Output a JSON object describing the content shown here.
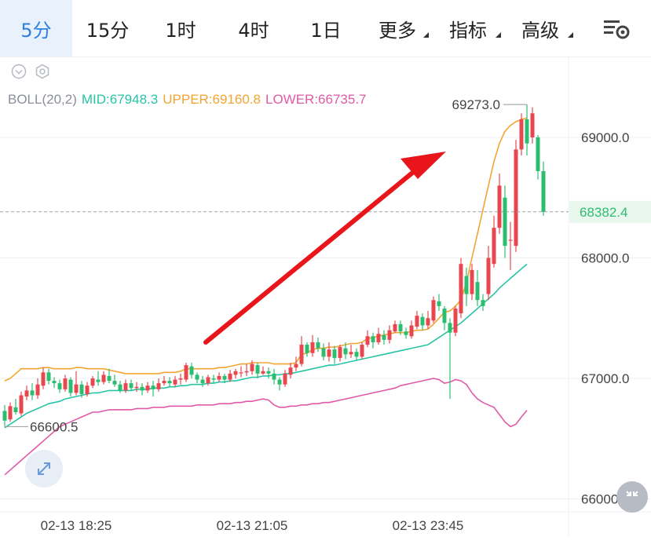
{
  "tabs": [
    {
      "label": "5分",
      "active": true,
      "dropdown": false
    },
    {
      "label": "15分",
      "active": false,
      "dropdown": false
    },
    {
      "label": "1时",
      "active": false,
      "dropdown": false
    },
    {
      "label": "4时",
      "active": false,
      "dropdown": false
    },
    {
      "label": "1日",
      "active": false,
      "dropdown": false
    },
    {
      "label": "更多",
      "active": false,
      "dropdown": true
    },
    {
      "label": "指标",
      "active": false,
      "dropdown": true
    },
    {
      "label": "高级",
      "active": false,
      "dropdown": true
    }
  ],
  "indicator": {
    "name": "BOLL(20,2)",
    "mid": "MID:67948.3",
    "upper": "UPPER:69160.8",
    "lower": "LOWER:66735.7"
  },
  "colors": {
    "up": "#e8474f",
    "down": "#2dbd6f",
    "mid": "#27c4a6",
    "upper": "#f2a531",
    "lower": "#e05aa8",
    "accent": "#2f7fe0",
    "arrow": "#e8161b"
  },
  "chart_data": {
    "type": "candlestick",
    "price_axis": {
      "ticks": [
        "69000.0",
        "68000.0",
        "67000.0",
        "66000.0"
      ],
      "tick_values": [
        69000,
        68000,
        67000,
        66000
      ],
      "current_price": "68382.4",
      "range": [
        65900,
        69900
      ]
    },
    "time_axis": {
      "labels": [
        "02-13 18:25",
        "02-13 21:05",
        "02-13 23:45"
      ],
      "label_index": [
        13,
        45,
        77
      ]
    },
    "annotations": {
      "high_label": "69273.0",
      "low_label": "66600.5"
    },
    "candles": [
      [
        66730,
        66650,
        66780,
        66600
      ],
      [
        66660,
        66770,
        66800,
        66640
      ],
      [
        66760,
        66720,
        66830,
        66700
      ],
      [
        66710,
        66860,
        66890,
        66690
      ],
      [
        66850,
        66900,
        66940,
        66820
      ],
      [
        66900,
        66860,
        66960,
        66820
      ],
      [
        66860,
        66950,
        67000,
        66830
      ],
      [
        66940,
        67050,
        67090,
        66910
      ],
      [
        67050,
        66980,
        67080,
        66950
      ],
      [
        66980,
        66960,
        67010,
        66920
      ],
      [
        66960,
        66910,
        66990,
        66880
      ],
      [
        66910,
        67000,
        67030,
        66890
      ],
      [
        66990,
        66880,
        67010,
        66850
      ],
      [
        66880,
        66950,
        67060,
        66860
      ],
      [
        66950,
        66870,
        66980,
        66840
      ],
      [
        66870,
        66940,
        66970,
        66850
      ],
      [
        66940,
        67000,
        67020,
        66920
      ],
      [
        66990,
        66970,
        67060,
        66940
      ],
      [
        66970,
        67030,
        67060,
        66950
      ],
      [
        67020,
        66980,
        67080,
        66960
      ],
      [
        66980,
        66950,
        67030,
        66930
      ],
      [
        66950,
        66900,
        66980,
        66880
      ],
      [
        66900,
        66960,
        66990,
        66880
      ],
      [
        66960,
        66920,
        66990,
        66900
      ],
      [
        66920,
        66930,
        66970,
        66890
      ],
      [
        66930,
        66900,
        66960,
        66860
      ],
      [
        66900,
        66940,
        66970,
        66880
      ],
      [
        66940,
        66910,
        66980,
        66850
      ],
      [
        66910,
        66960,
        67000,
        66890
      ],
      [
        66960,
        66980,
        67020,
        66940
      ],
      [
        66980,
        66960,
        67010,
        66930
      ],
      [
        66950,
        66990,
        67020,
        66930
      ],
      [
        66990,
        67000,
        67040,
        66950
      ],
      [
        66990,
        67110,
        67130,
        66970
      ],
      [
        67100,
        67030,
        67130,
        67000
      ],
      [
        67030,
        66990,
        67050,
        66960
      ],
      [
        66990,
        66960,
        67020,
        66930
      ],
      [
        66960,
        67010,
        67030,
        66940
      ],
      [
        67000,
        66990,
        67030,
        66960
      ],
      [
        66990,
        67020,
        67050,
        66970
      ],
      [
        67020,
        66990,
        67040,
        66960
      ],
      [
        66990,
        67040,
        67070,
        66970
      ],
      [
        67030,
        67060,
        67080,
        67000
      ],
      [
        67050,
        67050,
        67100,
        67010
      ],
      [
        67050,
        67060,
        67120,
        67020
      ],
      [
        67060,
        67120,
        67150,
        67030
      ],
      [
        67110,
        67040,
        67130,
        67000
      ],
      [
        67040,
        67060,
        67100,
        67030
      ],
      [
        67060,
        67040,
        67090,
        67000
      ],
      [
        67040,
        66990,
        67080,
        66950
      ],
      [
        66990,
        66950,
        67010,
        66900
      ],
      [
        66950,
        67040,
        67070,
        66930
      ],
      [
        67030,
        67090,
        67130,
        67000
      ],
      [
        67090,
        67120,
        67180,
        67060
      ],
      [
        67120,
        67280,
        67350,
        67100
      ],
      [
        67280,
        67210,
        67300,
        67180
      ],
      [
        67210,
        67300,
        67360,
        67180
      ],
      [
        67300,
        67250,
        67340,
        67220
      ],
      [
        67250,
        67180,
        67290,
        67150
      ],
      [
        67180,
        67240,
        67300,
        67140
      ],
      [
        67240,
        67170,
        67270,
        67120
      ],
      [
        67170,
        67260,
        67280,
        67140
      ],
      [
        67250,
        67200,
        67300,
        67160
      ],
      [
        67200,
        67220,
        67280,
        67170
      ],
      [
        67220,
        67180,
        67250,
        67150
      ],
      [
        67180,
        67280,
        67300,
        67160
      ],
      [
        67280,
        67350,
        67400,
        67260
      ],
      [
        67350,
        67300,
        67380,
        67250
      ],
      [
        67300,
        67370,
        67420,
        67280
      ],
      [
        67360,
        67320,
        67400,
        67280
      ],
      [
        67320,
        67400,
        67440,
        67290
      ],
      [
        67390,
        67450,
        67480,
        67380
      ],
      [
        67450,
        67390,
        67480,
        67360
      ],
      [
        67390,
        67360,
        67420,
        67330
      ],
      [
        67350,
        67440,
        67480,
        67330
      ],
      [
        67430,
        67520,
        67560,
        67410
      ],
      [
        67510,
        67440,
        67540,
        67400
      ],
      [
        67440,
        67500,
        67560,
        67410
      ],
      [
        67480,
        67650,
        67680,
        67460
      ],
      [
        67640,
        67600,
        67700,
        67560
      ],
      [
        67580,
        67460,
        67600,
        67400
      ],
      [
        67460,
        67380,
        67500,
        66830
      ],
      [
        67380,
        67580,
        67600,
        67350
      ],
      [
        67540,
        67950,
        68000,
        67500
      ],
      [
        67850,
        67700,
        67920,
        67600
      ],
      [
        67700,
        67900,
        67950,
        67650
      ],
      [
        67800,
        67650,
        67900,
        67600
      ],
      [
        67650,
        67600,
        67700,
        67560
      ],
      [
        67700,
        68000,
        68100,
        67650
      ],
      [
        67950,
        68250,
        68350,
        67920
      ],
      [
        68250,
        68600,
        68700,
        68200
      ],
      [
        68500,
        68100,
        68600,
        68000
      ],
      [
        68150,
        68150,
        68300,
        67900
      ],
      [
        68100,
        68900,
        68980,
        68050
      ],
      [
        68900,
        69150,
        69200,
        68850
      ],
      [
        69150,
        68950,
        69273,
        68850
      ],
      [
        69000,
        69200,
        69250,
        68950
      ],
      [
        69000,
        68720,
        69020,
        68650
      ],
      [
        68720,
        68382,
        68800,
        68350
      ]
    ],
    "boll": {
      "upper": [
        66980,
        67000,
        67040,
        67080,
        67080,
        67080,
        67080,
        67090,
        67090,
        67080,
        67080,
        67080,
        67080,
        67090,
        67090,
        67080,
        67080,
        67080,
        67080,
        67070,
        67060,
        67050,
        67040,
        67040,
        67040,
        67040,
        67040,
        67040,
        67040,
        67050,
        67050,
        67050,
        67060,
        67080,
        67080,
        67080,
        67080,
        67080,
        67080,
        67090,
        67090,
        67100,
        67110,
        67120,
        67120,
        67130,
        67130,
        67130,
        67130,
        67120,
        67120,
        67120,
        67120,
        67130,
        67200,
        67210,
        67240,
        67250,
        67250,
        67260,
        67260,
        67270,
        67280,
        67290,
        67290,
        67300,
        67330,
        67340,
        67350,
        67360,
        67370,
        67380,
        67380,
        67380,
        67390,
        67400,
        67400,
        67410,
        67450,
        67500,
        67550,
        67560,
        67600,
        67650,
        67800,
        68000,
        68200,
        68400,
        68600,
        68800,
        68950,
        69050,
        69100,
        69130,
        69150,
        69160
      ],
      "mid": [
        66590,
        66620,
        66650,
        66680,
        66710,
        66730,
        66750,
        66770,
        66790,
        66800,
        66810,
        66830,
        66840,
        66850,
        66860,
        66870,
        66880,
        66880,
        66890,
        66900,
        66900,
        66900,
        66900,
        66900,
        66910,
        66910,
        66910,
        66920,
        66920,
        66920,
        66930,
        66930,
        66940,
        66940,
        66950,
        66950,
        66950,
        66960,
        66960,
        66970,
        66970,
        66980,
        66980,
        66990,
        67000,
        67010,
        67010,
        67020,
        67020,
        67030,
        67030,
        67040,
        67040,
        67050,
        67060,
        67070,
        67080,
        67090,
        67100,
        67110,
        67110,
        67120,
        67130,
        67140,
        67150,
        67160,
        67170,
        67180,
        67190,
        67200,
        67210,
        67220,
        67230,
        67240,
        67250,
        67260,
        67270,
        67280,
        67310,
        67340,
        67370,
        67400,
        67430,
        67460,
        67500,
        67540,
        67580,
        67620,
        67660,
        67700,
        67750,
        67790,
        67830,
        67870,
        67910,
        67948
      ],
      "lower": [
        66200,
        66240,
        66280,
        66320,
        66360,
        66400,
        66440,
        66480,
        66520,
        66560,
        66600,
        66620,
        66640,
        66660,
        66680,
        66700,
        66720,
        66720,
        66730,
        66740,
        66740,
        66740,
        66740,
        66740,
        66750,
        66750,
        66750,
        66760,
        66760,
        66760,
        66770,
        66770,
        66770,
        66770,
        66770,
        66780,
        66780,
        66780,
        66780,
        66790,
        66790,
        66790,
        66800,
        66800,
        66810,
        66810,
        66820,
        66830,
        66820,
        66780,
        66760,
        66760,
        66770,
        66770,
        66780,
        66780,
        66790,
        66790,
        66800,
        66800,
        66810,
        66820,
        66830,
        66840,
        66850,
        66860,
        66870,
        66880,
        66890,
        66900,
        66910,
        66920,
        66940,
        66950,
        66960,
        66970,
        66980,
        66990,
        67000,
        66990,
        66960,
        66970,
        66990,
        66980,
        66950,
        66880,
        66830,
        66800,
        66780,
        66760,
        66700,
        66640,
        66600,
        66620,
        66680,
        66735
      ]
    }
  }
}
